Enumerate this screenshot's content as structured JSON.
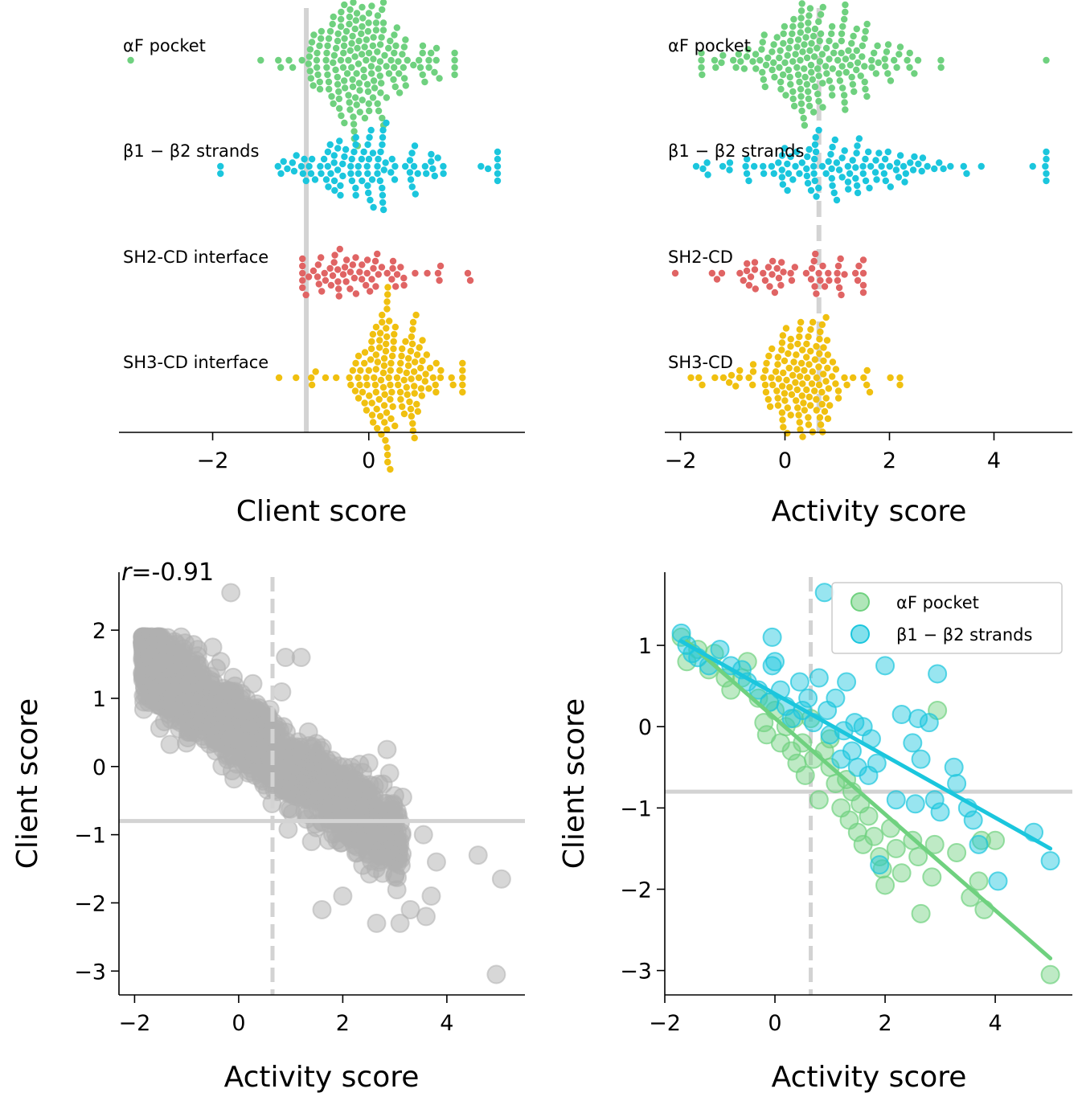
{
  "colors": {
    "afpocket": "#6fd17f",
    "b1b2": "#1bc6dd",
    "sh2cd": "#e06464",
    "sh3cd": "#f0c010",
    "gray_points": "#b0b0b0",
    "ref_line": "#d3d3d3"
  },
  "chart_data": [
    {
      "id": "client_swarm",
      "type": "scatter",
      "subtype": "swarm",
      "xlabel": "Client score",
      "ylabel": "",
      "xlim": [
        -3.2,
        2.0
      ],
      "xticks": [
        -2,
        0
      ],
      "tick_labels": [
        "−2",
        "0"
      ],
      "threshold_x": -0.8,
      "threshold_style": "solid",
      "series": [
        {
          "name": "αF pocket",
          "color_key": "afpocket",
          "n": 190,
          "center": -0.1,
          "spread": 0.38,
          "min": -3.05,
          "max": 1.1
        },
        {
          "name": "β1 − β2 strands",
          "color_key": "b1b2",
          "n": 110,
          "center": 0.0,
          "spread": 0.48,
          "min": -1.9,
          "max": 1.65
        },
        {
          "name": "SH2-CD interface",
          "color_key": "sh2cd",
          "n": 65,
          "center": 0.0,
          "spread": 0.45,
          "min": -0.85,
          "max": 1.3
        },
        {
          "name": "SH3-CD interface",
          "color_key": "sh3cd",
          "n": 150,
          "center": 0.28,
          "spread": 0.25,
          "min": -1.15,
          "max": 1.2
        }
      ]
    },
    {
      "id": "activity_swarm",
      "type": "scatter",
      "subtype": "swarm",
      "xlabel": "Activity score",
      "ylabel": "",
      "xlim": [
        -2.3,
        5.5
      ],
      "xticks": [
        -2,
        0,
        2,
        4
      ],
      "tick_labels": [
        "−2",
        "0",
        "2",
        "4"
      ],
      "threshold_x": 0.65,
      "threshold_style": "dashed",
      "series": [
        {
          "name": "αF pocket",
          "color_key": "afpocket",
          "n": 190,
          "center": 0.55,
          "spread": 0.75,
          "min": -1.6,
          "max": 5.0
        },
        {
          "name": "β1 − β2 strands",
          "color_key": "b1b2",
          "n": 120,
          "center": 0.8,
          "spread": 1.1,
          "min": -1.7,
          "max": 5.0
        },
        {
          "name": "SH2-CD",
          "color_key": "sh2cd",
          "n": 55,
          "center": 0.4,
          "spread": 0.8,
          "min": -2.1,
          "max": 1.5
        },
        {
          "name": "SH3-CD",
          "color_key": "sh3cd",
          "n": 140,
          "center": 0.25,
          "spread": 0.45,
          "min": -1.8,
          "max": 2.2
        }
      ]
    },
    {
      "id": "all_scatter",
      "type": "scatter",
      "xlabel": "Activity score",
      "ylabel": "Client score",
      "xlim": [
        -2.3,
        5.5
      ],
      "ylim": [
        -3.35,
        2.85
      ],
      "xticks": [
        -2,
        0,
        2,
        4
      ],
      "xtick_labels": [
        "−2",
        "0",
        "2",
        "4"
      ],
      "yticks": [
        2,
        1,
        0,
        -1,
        -2,
        -3
      ],
      "ytick_labels": [
        "2",
        "1",
        "0",
        "−1",
        "−2",
        "−3"
      ],
      "annotation": {
        "italic": "r",
        "rest": "=-0.91"
      },
      "hline_y": -0.8,
      "vline_x": 0.65,
      "n_points": 1600,
      "trend": {
        "slope": -0.55,
        "intercept": 0.55,
        "noise": 0.28
      },
      "highlight_points": [
        {
          "x": -0.15,
          "y": 2.55
        },
        {
          "x": 4.95,
          "y": -3.05
        },
        {
          "x": 5.05,
          "y": -1.65
        },
        {
          "x": 4.6,
          "y": -1.3
        },
        {
          "x": 3.7,
          "y": -1.9
        },
        {
          "x": 3.8,
          "y": -1.4
        },
        {
          "x": 3.6,
          "y": -2.2
        },
        {
          "x": 3.3,
          "y": -2.1
        },
        {
          "x": 3.15,
          "y": -0.45
        },
        {
          "x": 3.55,
          "y": -1.0
        },
        {
          "x": 2.65,
          "y": -2.3
        },
        {
          "x": 3.1,
          "y": -2.3
        },
        {
          "x": 1.4,
          "y": -1.1
        },
        {
          "x": 1.6,
          "y": -2.1
        },
        {
          "x": 2.0,
          "y": -1.9
        },
        {
          "x": 2.9,
          "y": -0.1
        },
        {
          "x": 2.85,
          "y": 0.25
        },
        {
          "x": 2.5,
          "y": 0.05
        },
        {
          "x": 1.2,
          "y": 1.6
        },
        {
          "x": 0.9,
          "y": 1.6
        },
        {
          "x": -0.5,
          "y": 1.75
        }
      ]
    },
    {
      "id": "afpocket_b1b2_scatter",
      "type": "scatter",
      "xlabel": "Activity score",
      "ylabel": "Client score",
      "xlim": [
        -2.0,
        5.4
      ],
      "ylim": [
        -3.3,
        1.9
      ],
      "xticks": [
        -2,
        0,
        2,
        4
      ],
      "xtick_labels": [
        "−2",
        "0",
        "2",
        "4"
      ],
      "yticks": [
        1,
        0,
        -1,
        -2,
        -3
      ],
      "ytick_labels": [
        "1",
        "0",
        "−1",
        "−2",
        "−3"
      ],
      "hline_y": -0.8,
      "vline_x": 0.65,
      "series": [
        {
          "name": "αF pocket",
          "color_key": "afpocket",
          "fit": {
            "x": [
              -1.6,
              5.0
            ],
            "y": [
              1.05,
              -2.85
            ]
          },
          "points": [
            {
              "x": -1.7,
              "y": 1.1
            },
            {
              "x": -1.6,
              "y": 0.8
            },
            {
              "x": -1.4,
              "y": 0.95
            },
            {
              "x": -1.2,
              "y": 0.7
            },
            {
              "x": -1.1,
              "y": 0.9
            },
            {
              "x": -0.9,
              "y": 0.6
            },
            {
              "x": -0.8,
              "y": 0.45
            },
            {
              "x": -0.6,
              "y": 0.6
            },
            {
              "x": -0.5,
              "y": 0.8
            },
            {
              "x": -0.3,
              "y": 0.35
            },
            {
              "x": -0.2,
              "y": 0.05
            },
            {
              "x": -0.15,
              "y": -0.1
            },
            {
              "x": 0.0,
              "y": 0.2
            },
            {
              "x": 0.1,
              "y": -0.2
            },
            {
              "x": 0.2,
              "y": 0.0
            },
            {
              "x": 0.3,
              "y": -0.3
            },
            {
              "x": 0.35,
              "y": 0.1
            },
            {
              "x": 0.4,
              "y": -0.45
            },
            {
              "x": 0.5,
              "y": -0.2
            },
            {
              "x": 0.55,
              "y": -0.6
            },
            {
              "x": 0.7,
              "y": -0.4
            },
            {
              "x": 0.8,
              "y": -0.9
            },
            {
              "x": 0.9,
              "y": -0.3
            },
            {
              "x": 1.0,
              "y": -0.5
            },
            {
              "x": 1.1,
              "y": -0.7
            },
            {
              "x": 1.2,
              "y": -1.0
            },
            {
              "x": 1.3,
              "y": -0.65
            },
            {
              "x": 1.35,
              "y": -1.15
            },
            {
              "x": 1.4,
              "y": -0.8
            },
            {
              "x": 1.5,
              "y": -1.3
            },
            {
              "x": 1.55,
              "y": -0.95
            },
            {
              "x": 1.6,
              "y": -1.45
            },
            {
              "x": 1.7,
              "y": -1.1
            },
            {
              "x": 1.8,
              "y": -1.35
            },
            {
              "x": 1.9,
              "y": -1.6
            },
            {
              "x": 1.95,
              "y": -1.75
            },
            {
              "x": 2.0,
              "y": -1.95
            },
            {
              "x": 2.1,
              "y": -1.25
            },
            {
              "x": 2.2,
              "y": -1.5
            },
            {
              "x": 2.3,
              "y": -1.8
            },
            {
              "x": 2.5,
              "y": -1.4
            },
            {
              "x": 2.6,
              "y": -1.6
            },
            {
              "x": 2.65,
              "y": -2.3
            },
            {
              "x": 2.85,
              "y": -1.85
            },
            {
              "x": 2.9,
              "y": -1.45
            },
            {
              "x": 2.95,
              "y": 0.2
            },
            {
              "x": 3.3,
              "y": -1.55
            },
            {
              "x": 3.55,
              "y": -2.1
            },
            {
              "x": 3.7,
              "y": -1.9
            },
            {
              "x": 3.75,
              "y": -1.4
            },
            {
              "x": 3.8,
              "y": -2.25
            },
            {
              "x": 4.0,
              "y": -1.4
            },
            {
              "x": 5.0,
              "y": -3.05
            },
            {
              "x": 1.0,
              "y": -0.15
            },
            {
              "x": 0.65,
              "y": 0.1
            },
            {
              "x": -0.1,
              "y": 0.3
            }
          ]
        },
        {
          "name": "β1 − β2 strands",
          "color_key": "b1b2",
          "fit": {
            "x": [
              -1.7,
              5.0
            ],
            "y": [
              1.05,
              -1.5
            ]
          },
          "points": [
            {
              "x": -1.7,
              "y": 1.15
            },
            {
              "x": -1.6,
              "y": 1.0
            },
            {
              "x": -1.5,
              "y": 0.9
            },
            {
              "x": -1.4,
              "y": 0.85
            },
            {
              "x": -1.2,
              "y": 0.75
            },
            {
              "x": -1.0,
              "y": 0.95
            },
            {
              "x": -0.8,
              "y": 0.75
            },
            {
              "x": -0.6,
              "y": 0.7
            },
            {
              "x": -0.5,
              "y": 0.55
            },
            {
              "x": -0.3,
              "y": 0.45
            },
            {
              "x": -0.1,
              "y": 0.3
            },
            {
              "x": -0.05,
              "y": 0.75
            },
            {
              "x": -0.05,
              "y": 1.1
            },
            {
              "x": 0.0,
              "y": 0.8
            },
            {
              "x": 0.1,
              "y": 0.45
            },
            {
              "x": 0.2,
              "y": 0.25
            },
            {
              "x": 0.3,
              "y": 0.1
            },
            {
              "x": 0.45,
              "y": 0.55
            },
            {
              "x": 0.5,
              "y": 0.2
            },
            {
              "x": 0.6,
              "y": 0.35
            },
            {
              "x": 0.7,
              "y": 0.05
            },
            {
              "x": 0.8,
              "y": 0.6
            },
            {
              "x": 0.9,
              "y": 1.65
            },
            {
              "x": 0.95,
              "y": 0.2
            },
            {
              "x": 1.0,
              "y": -0.1
            },
            {
              "x": 1.1,
              "y": 0.35
            },
            {
              "x": 1.2,
              "y": -0.4
            },
            {
              "x": 1.25,
              "y": -0.05
            },
            {
              "x": 1.3,
              "y": 0.55
            },
            {
              "x": 1.4,
              "y": -0.3
            },
            {
              "x": 1.45,
              "y": 0.05
            },
            {
              "x": 1.5,
              "y": -0.5
            },
            {
              "x": 1.6,
              "y": 0.0
            },
            {
              "x": 1.7,
              "y": -0.6
            },
            {
              "x": 1.75,
              "y": -0.15
            },
            {
              "x": 1.85,
              "y": -0.45
            },
            {
              "x": 1.9,
              "y": -1.7
            },
            {
              "x": 2.0,
              "y": 0.75
            },
            {
              "x": 2.2,
              "y": -0.9
            },
            {
              "x": 2.3,
              "y": 0.15
            },
            {
              "x": 2.5,
              "y": -0.2
            },
            {
              "x": 2.6,
              "y": 0.1
            },
            {
              "x": 2.65,
              "y": -0.4
            },
            {
              "x": 2.8,
              "y": 0.05
            },
            {
              "x": 2.9,
              "y": -0.9
            },
            {
              "x": 2.95,
              "y": 0.65
            },
            {
              "x": 3.0,
              "y": -1.05
            },
            {
              "x": 3.3,
              "y": -0.7
            },
            {
              "x": 3.5,
              "y": -1.0
            },
            {
              "x": 3.6,
              "y": -1.15
            },
            {
              "x": 3.7,
              "y": -1.45
            },
            {
              "x": 4.05,
              "y": -1.9
            },
            {
              "x": 4.7,
              "y": -1.3
            },
            {
              "x": 5.0,
              "y": -1.65
            },
            {
              "x": 3.25,
              "y": -0.5
            },
            {
              "x": 2.55,
              "y": -0.95
            }
          ]
        }
      ],
      "legend": {
        "position": "top-right",
        "entries": [
          "αF pocket",
          "β1 − β2 strands"
        ]
      }
    }
  ]
}
